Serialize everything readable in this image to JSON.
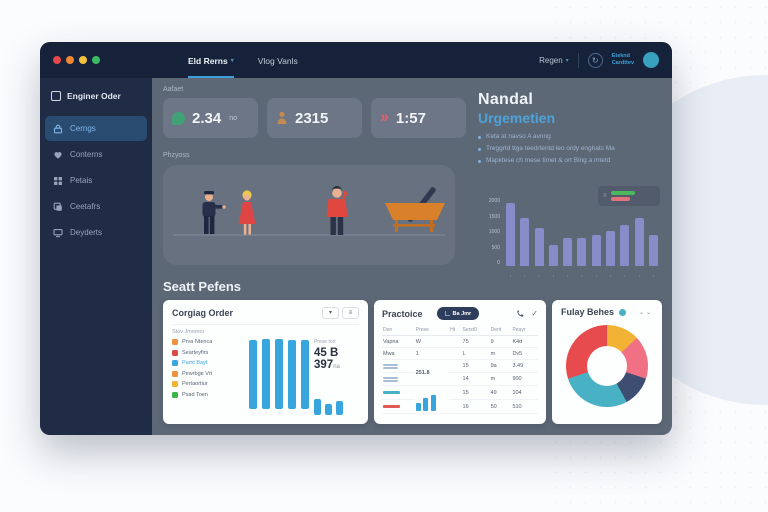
{
  "topbar": {
    "nav": [
      {
        "label": "Eld Rerns",
        "caret": "▾"
      },
      {
        "label": "Vlog Vanls",
        "caret": ""
      }
    ],
    "right_menu": {
      "label": "Regen",
      "caret": "▾"
    },
    "refresh_glyph": "↻",
    "account": {
      "line1": "Eteknd",
      "line2": "Cardttev"
    }
  },
  "sidebar": {
    "brand": "Enginer Oder",
    "items": [
      {
        "label": "Cerngs",
        "icon": "lock-icon",
        "active": true
      },
      {
        "label": "Conterns",
        "icon": "heart-icon",
        "active": false
      },
      {
        "label": "Petais",
        "icon": "grid-icon",
        "active": false
      },
      {
        "label": "Ceetafrs",
        "icon": "layers-icon",
        "active": false
      },
      {
        "label": "Deyderts",
        "icon": "monitor-icon",
        "active": false
      }
    ]
  },
  "main": {
    "stats_label": "Aafaet",
    "stats": [
      {
        "value": "2.34",
        "suffix": "no",
        "color": "#41a177",
        "icon": "leaf-icon"
      },
      {
        "value": "2315",
        "suffix": "",
        "color": "#c08a50",
        "icon": "person-icon"
      },
      {
        "value": "1:57",
        "suffix": "",
        "color": "#e2606b",
        "icon": "chevrons-icon"
      }
    ],
    "progress_label": "Phzyoss",
    "info": {
      "title1": "Nandal",
      "title2": "Urgemetien",
      "bullets": [
        "Keta at navso A avnng",
        "Treggrtd ttga teedrtentd leo ordy enghats Ma",
        "Mapktese ch mese timet & ort Blng a mtetd"
      ]
    },
    "reports_heading": "Seatt Pefens"
  },
  "card_orders": {
    "title": "Corgiag Order",
    "btn1": "▾",
    "btn2": "≡",
    "subtitle": "Stov Jmomni",
    "legend": [
      {
        "label": "Prva Ntenca",
        "color": "#f09140",
        "highlight": false
      },
      {
        "label": "Searteyfirs",
        "color": "#dd4b49",
        "highlight": false
      },
      {
        "label": "Pamt Bayt",
        "color": "#3aa6de",
        "highlight": true
      },
      {
        "label": "Pewrbge Vrt",
        "color": "#f09140",
        "highlight": false
      },
      {
        "label": "Pertaortiur",
        "color": "#f2b633",
        "highlight": false
      },
      {
        "label": "Psad Toen",
        "color": "#3cb54a",
        "highlight": false
      }
    ],
    "stat_label": "Prese tort",
    "stat1": "45 B",
    "stat2": "397",
    "stat2_suffix": "na"
  },
  "card_invoice": {
    "title": "Practoice",
    "button_label": "Ba Jmr",
    "check_glyph": "✓",
    "headers": [
      "Den",
      "Prese",
      "Ht",
      "Serst0",
      "Dent",
      "Peayr"
    ],
    "big_value": "251.8",
    "rows": [
      {
        "c0": "Vapna",
        "c1": "W",
        "c3": "75",
        "c4": "9",
        "c5": "K4d"
      },
      {
        "c0": "Mwa",
        "c1": "1",
        "c3": "L",
        "c4": "m",
        "c5": "Dv5"
      },
      {
        "c3": "15",
        "c4": "9a",
        "c5": "3.49"
      },
      {
        "c3": "14",
        "c4": "m",
        "c5": "900"
      },
      {
        "c3": "15",
        "c4": "49",
        "c5": "104"
      },
      {
        "c3": "16",
        "c4": "50",
        "c5": "510"
      }
    ]
  },
  "card_donut": {
    "title": "Fulay Behes",
    "chevrons": "⌄⌄"
  },
  "chart_data": [
    {
      "type": "bar",
      "name": "activity-chart",
      "categories": [
        "1",
        "2",
        "3",
        "4",
        "5",
        "6",
        "7",
        "8",
        "9",
        "10",
        "11"
      ],
      "values": [
        1900,
        1450,
        1150,
        650,
        850,
        850,
        950,
        1050,
        1250,
        1450,
        950
      ],
      "ylim": [
        0,
        2000
      ],
      "ytick_labels": [
        "2000",
        "1500",
        "1000",
        "500",
        "0"
      ],
      "bar_color": "#8a90cf",
      "legend_position": "top-right",
      "legend": [
        {
          "color": "#4cb75c"
        },
        {
          "color": "#e2737a"
        }
      ]
    },
    {
      "type": "bar",
      "name": "ongoing-orders-chart",
      "values": [
        98,
        100,
        100,
        99,
        99
      ],
      "small_values": [
        62,
        42,
        55
      ],
      "ylim": [
        0,
        100
      ],
      "bar_color": "#38a5dd"
    },
    {
      "type": "bar",
      "name": "invoice-mini-chart",
      "values": [
        34,
        58,
        72
      ],
      "ylim": [
        0,
        100
      ],
      "bar_color": "#38a5dd"
    },
    {
      "type": "pie",
      "name": "donut-chart",
      "segments": [
        {
          "label": "amber",
          "value": 13,
          "color": "#f2b234"
        },
        {
          "label": "pink",
          "value": 17,
          "color": "#ef7183"
        },
        {
          "label": "navy",
          "value": 12,
          "color": "#3e4e72"
        },
        {
          "label": "teal",
          "value": 28,
          "color": "#48b1c3"
        },
        {
          "label": "red",
          "value": 30,
          "color": "#e84b4e"
        }
      ]
    }
  ]
}
